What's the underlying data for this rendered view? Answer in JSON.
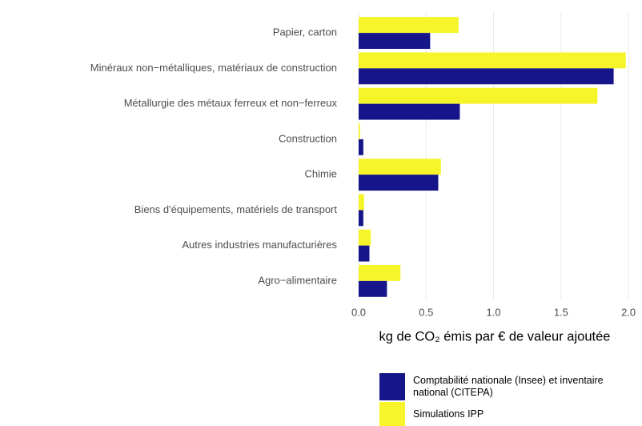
{
  "chart_data": {
    "type": "barh",
    "categories": [
      "Papier, carton",
      "Minéraux non−métalliques, matériaux de construction",
      "Métallurgie des métaux ferreux et non−ferreux",
      "Construction",
      "Chimie",
      "Biens d'équipements, matériels de transport",
      "Autres industries manufacturières",
      "Agro−alimentaire"
    ],
    "series": [
      {
        "name": "Comptabilité nationale (Insee) et inventaire national (CITEPA)",
        "color": "#16168a",
        "values": [
          0.53,
          1.89,
          0.75,
          0.035,
          0.59,
          0.035,
          0.08,
          0.21
        ]
      },
      {
        "name": "Simulations IPP",
        "color": "#f5f52a",
        "values": [
          0.74,
          1.98,
          1.77,
          0.01,
          0.61,
          0.04,
          0.09,
          0.31
        ]
      }
    ],
    "xlabel": "kg de CO₂ émis par € de valeur ajoutée",
    "xlim": [
      0,
      2.1
    ],
    "xticks": [
      {
        "value": 0,
        "label": "0.0"
      },
      0.5,
      {
        "value": 1,
        "label": "1.0"
      },
      1.5,
      {
        "value": 2,
        "label": "2.0"
      }
    ],
    "grid": true
  }
}
